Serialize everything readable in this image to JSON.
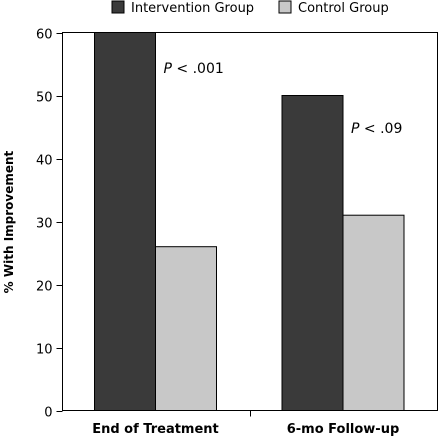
{
  "chart_data": {
    "type": "bar",
    "categories": [
      "End of Treatment",
      "6-mo Follow-up"
    ],
    "series": [
      {
        "name": "Intervention Group",
        "values": [
          60,
          50
        ],
        "color": "#3a3a3a"
      },
      {
        "name": "Control Group",
        "values": [
          26,
          31
        ],
        "color": "#c8c8c8"
      }
    ],
    "ylabel": "% With Improvement",
    "xlabel": "",
    "ylim": [
      0,
      60
    ],
    "yticks": [
      0,
      10,
      20,
      30,
      40,
      50,
      60
    ],
    "legend_position": "top",
    "grid": false,
    "annotations": [
      {
        "category": "End of Treatment",
        "p_label": "P",
        "text": " < .001"
      },
      {
        "category": "6-mo Follow-up",
        "p_label": "P",
        "text": " < .09"
      }
    ]
  }
}
